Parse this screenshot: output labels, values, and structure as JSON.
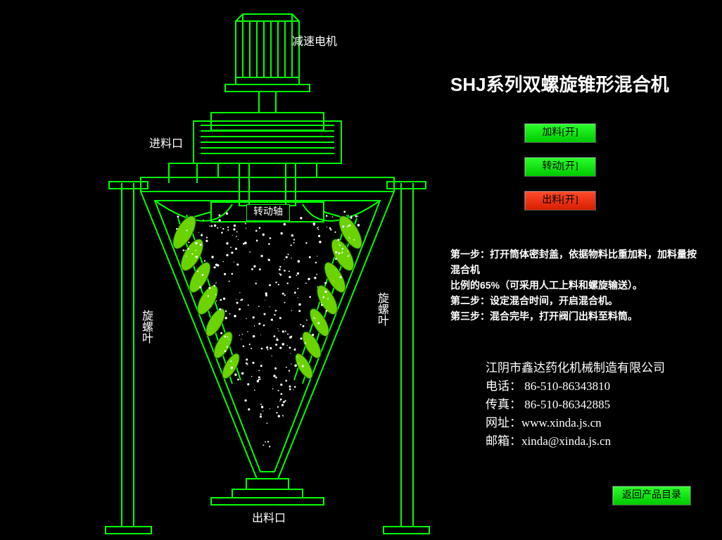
{
  "title": "SHJ系列双螺旋锥形混合机",
  "buttons": {
    "feed": {
      "label": "加料[开]",
      "color": "green"
    },
    "rotate": {
      "label": "转动[开]",
      "color": "green"
    },
    "output": {
      "label": "出料[开]",
      "color": "red"
    },
    "back": {
      "label": "返回产品目录",
      "color": "green"
    }
  },
  "steps": {
    "s1": "第一步：打开筒体密封盖，依据物料比重加料，加料量按混合机",
    "s1b": "比例的65%（可采用人工上料和螺旋输送）。",
    "s2": "第二步：设定混合时间，开启混合机。",
    "s3": "第三步：混合完毕，打开阀门出料至料筒。"
  },
  "contact": {
    "company": "江阴市鑫达药化机械制造有限公司",
    "tel_label": "电话：",
    "tel": "86-510-86343810",
    "fax_label": "传真：",
    "fax": "86-510-86342885",
    "web_label": "网址：",
    "web": "www.xinda.js.cn",
    "mail_label": "邮箱：",
    "mail": "xinda@xinda.js.cn"
  },
  "labels": {
    "motor": "减速电机",
    "inlet": "进料口",
    "shaft": "转动轴",
    "screw_l": "旋螺叶",
    "screw_r": "旋螺叶",
    "outlet": "出料口"
  },
  "style": {
    "stroke": "#00ff00",
    "fill_screw": "#6bd400",
    "bg": "#000000"
  }
}
